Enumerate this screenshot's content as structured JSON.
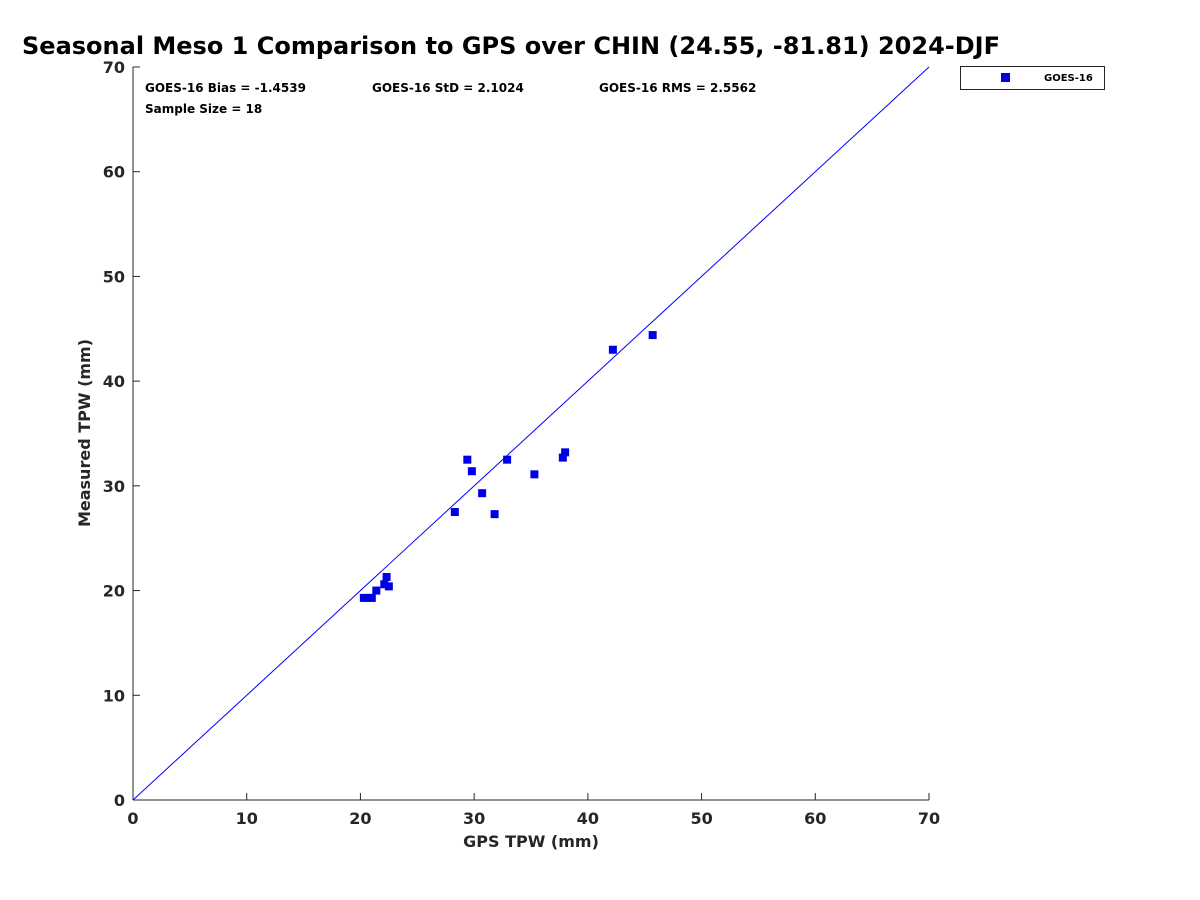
{
  "chart_data": {
    "type": "scatter",
    "title": "Seasonal Meso 1 Comparison to GPS over CHIN (24.55, -81.81) 2024-DJF",
    "xlabel": "GPS TPW (mm)",
    "ylabel": "Measured TPW (mm)",
    "xlim": [
      0,
      70
    ],
    "ylim": [
      0,
      70
    ],
    "xticks": [
      "0",
      "10",
      "20",
      "30",
      "40",
      "50",
      "60",
      "70"
    ],
    "yticks": [
      "0",
      "10",
      "20",
      "30",
      "40",
      "50",
      "60",
      "70"
    ],
    "grid": false,
    "legend_position": "outside-top-right",
    "reference_line": {
      "x": [
        0,
        70
      ],
      "y": [
        0,
        70
      ],
      "color": "#0000ff"
    },
    "annotations": {
      "bias": "GOES-16 Bias = -1.4539",
      "std": "GOES-16 StD = 2.1024",
      "rms": "GOES-16 RMS = 2.5562",
      "sample_size": "Sample Size = 18"
    },
    "series": [
      {
        "name": "GOES-16",
        "color": "#0000e6",
        "marker": "square",
        "points": [
          [
            20.3,
            19.3
          ],
          [
            20.6,
            19.3
          ],
          [
            21.0,
            19.3
          ],
          [
            21.4,
            20.0
          ],
          [
            22.1,
            20.6
          ],
          [
            22.3,
            21.3
          ],
          [
            22.5,
            20.4
          ],
          [
            28.3,
            27.5
          ],
          [
            29.4,
            32.5
          ],
          [
            29.8,
            31.4
          ],
          [
            30.7,
            29.3
          ],
          [
            31.8,
            27.3
          ],
          [
            32.9,
            32.5
          ],
          [
            35.3,
            31.1
          ],
          [
            37.8,
            32.7
          ],
          [
            38.0,
            33.2
          ],
          [
            42.2,
            43.0
          ],
          [
            45.7,
            44.4
          ]
        ]
      }
    ]
  }
}
